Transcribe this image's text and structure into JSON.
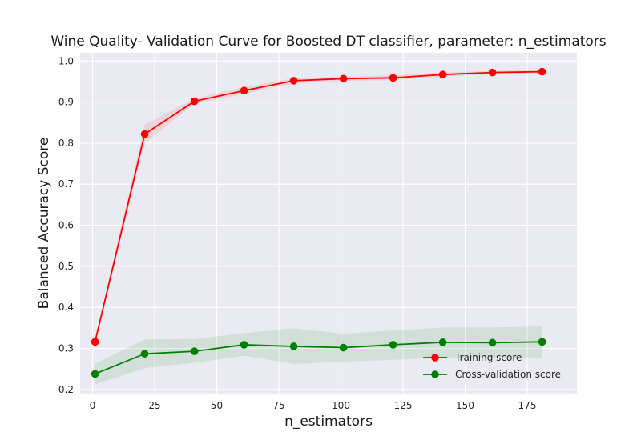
{
  "chart_data": {
    "type": "line",
    "title": "Wine Quality- Validation Curve for Boosted DT classifier, parameter: n_estimators",
    "xlabel": "n_estimators",
    "ylabel": "Balanced Accuracy Score",
    "xlim": [
      -5,
      195
    ],
    "ylim": [
      0.19,
      1.02
    ],
    "xticks": [
      0,
      25,
      50,
      75,
      100,
      125,
      150,
      175
    ],
    "yticks": [
      0.2,
      0.3,
      0.4,
      0.5,
      0.6,
      0.7,
      0.8,
      0.9,
      1.0
    ],
    "ytick_labels": [
      "0.2",
      "0.3",
      "0.4",
      "0.5",
      "0.6",
      "0.7",
      "0.8",
      "0.9",
      "1.0"
    ],
    "grid": true,
    "background_color": "#eaeaf2",
    "legend_position": "lower-right",
    "x": [
      1,
      21,
      41,
      61,
      81,
      101,
      121,
      141,
      161,
      181
    ],
    "series": [
      {
        "name": "Training score",
        "color": "#ff0000",
        "values": [
          0.316,
          0.822,
          0.902,
          0.928,
          0.952,
          0.957,
          0.959,
          0.967,
          0.972,
          0.974
        ],
        "band_lower": [
          0.313,
          0.8,
          0.895,
          0.92,
          0.946,
          0.952,
          0.953,
          0.962,
          0.968,
          0.97
        ],
        "band_upper": [
          0.32,
          0.845,
          0.909,
          0.936,
          0.958,
          0.962,
          0.965,
          0.972,
          0.976,
          0.978
        ]
      },
      {
        "name": "Cross-validation score",
        "color": "#008000",
        "values": [
          0.238,
          0.287,
          0.293,
          0.309,
          0.305,
          0.302,
          0.309,
          0.315,
          0.314,
          0.316
        ],
        "band_lower": [
          0.212,
          0.252,
          0.265,
          0.282,
          0.262,
          0.268,
          0.272,
          0.278,
          0.277,
          0.278
        ],
        "band_upper": [
          0.262,
          0.322,
          0.323,
          0.337,
          0.349,
          0.336,
          0.344,
          0.351,
          0.351,
          0.354
        ]
      }
    ]
  }
}
